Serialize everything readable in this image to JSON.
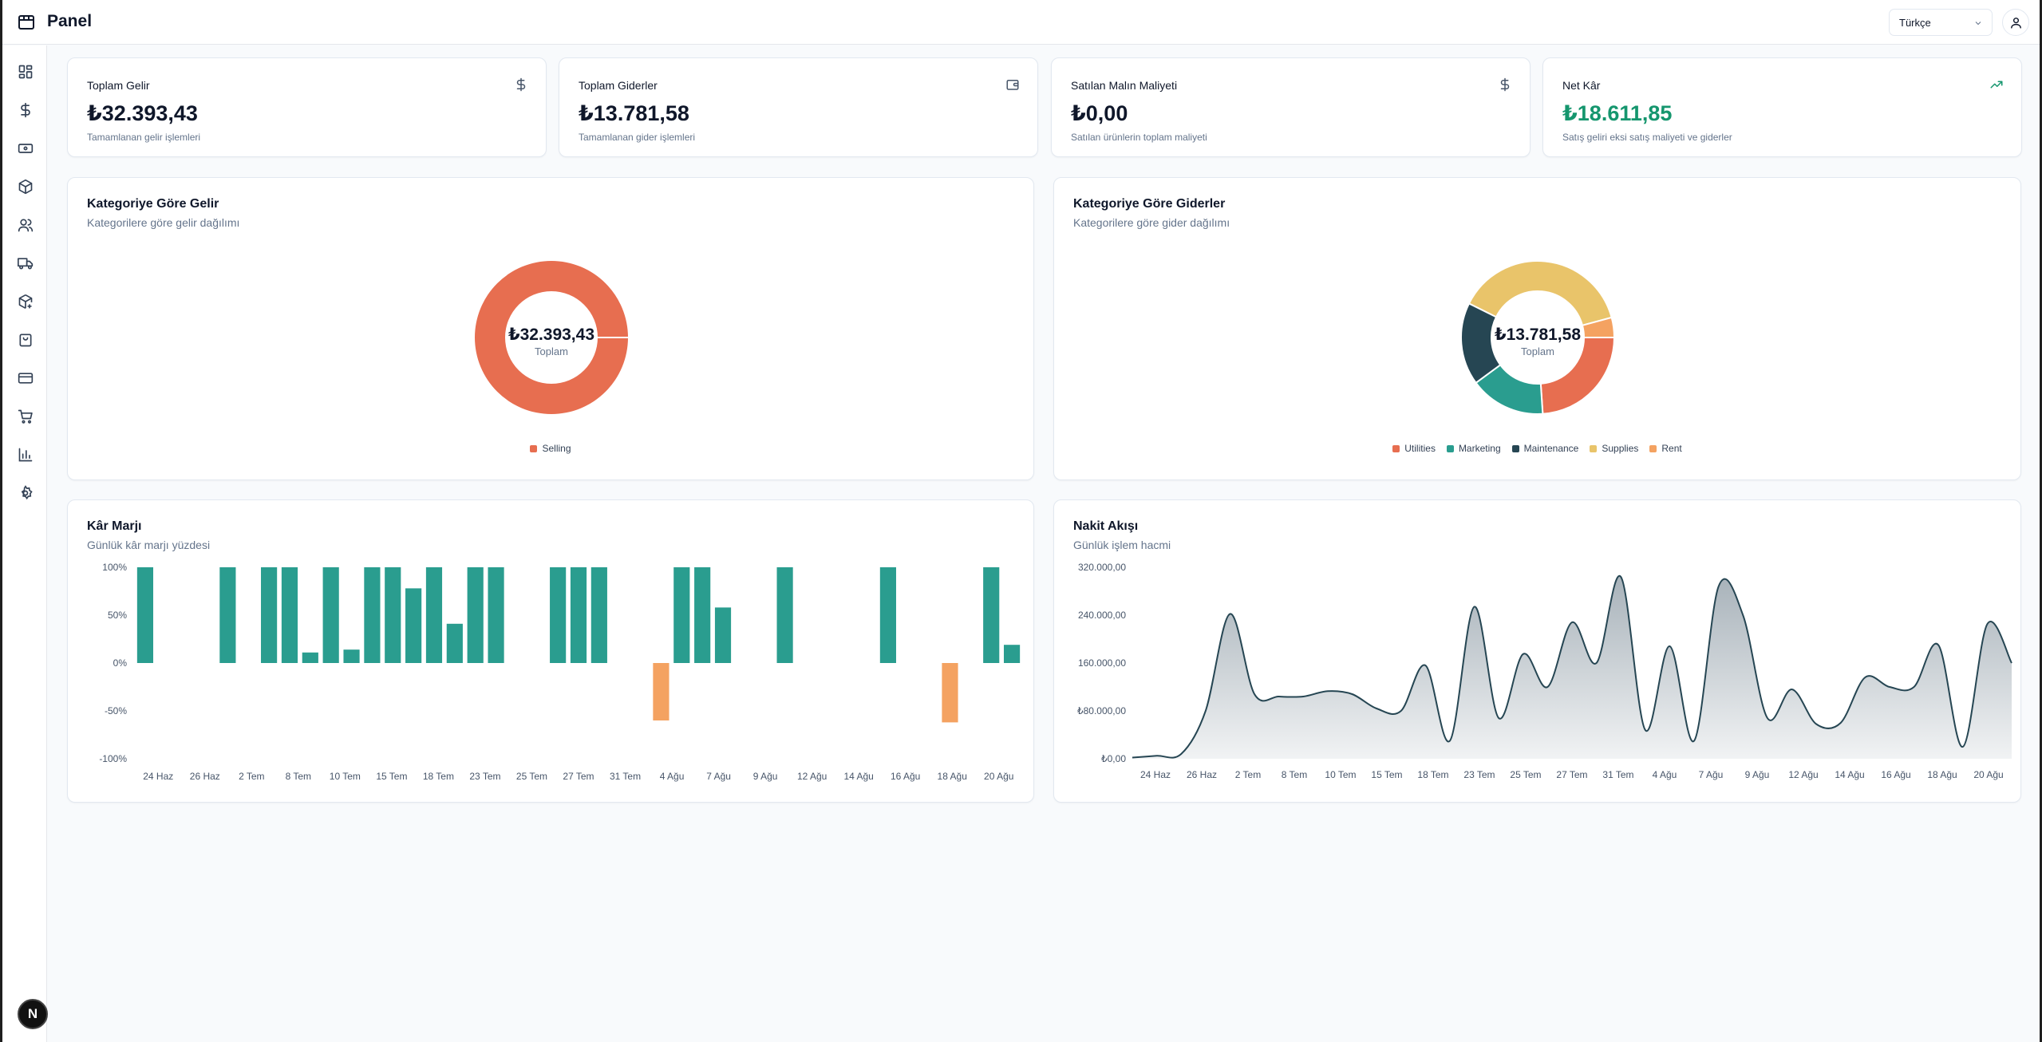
{
  "header": {
    "brand": "Panel",
    "language": "Türkçe"
  },
  "sidebar": {
    "items": [
      {
        "icon": "dashboard-icon",
        "active": true
      },
      {
        "icon": "dollar-icon"
      },
      {
        "icon": "banknote-icon"
      },
      {
        "icon": "package-icon"
      },
      {
        "icon": "users-icon"
      },
      {
        "icon": "truck-icon"
      },
      {
        "icon": "package-plus-icon"
      },
      {
        "icon": "shopping-bag-icon"
      },
      {
        "icon": "credit-card-icon"
      },
      {
        "icon": "shopping-cart-icon"
      },
      {
        "icon": "bar-chart-icon"
      },
      {
        "icon": "settings-icon"
      }
    ],
    "badge": "N"
  },
  "stats": [
    {
      "title": "Toplam Gelir",
      "value": "₺32.393,43",
      "desc": "Tamamlanan gelir işlemleri",
      "icon": "dollar-icon"
    },
    {
      "title": "Toplam Giderler",
      "value": "₺13.781,58",
      "desc": "Tamamlanan gider işlemleri",
      "icon": "wallet-icon"
    },
    {
      "title": "Satılan Malın Maliyeti",
      "value": "₺0,00",
      "desc": "Satılan ürünlerin toplam maliyeti",
      "icon": "dollar-icon"
    },
    {
      "title": "Net Kâr",
      "value": "₺18.611,85",
      "desc": "Satış geliri eksi satış maliyeti ve giderler",
      "icon": "trending-up-icon",
      "accent": "#15966e"
    }
  ],
  "income_panel": {
    "title": "Kategoriye Göre Gelir",
    "subtitle": "Kategorilere göre gelir dağılımı"
  },
  "expense_panel": {
    "title": "Kategoriye Göre Giderler",
    "subtitle": "Kategorilere göre gider dağılımı"
  },
  "margin_panel": {
    "title": "Kâr Marjı",
    "subtitle": "Günlük kâr marjı yüzdesi"
  },
  "cashflow_panel": {
    "title": "Nakit Akışı",
    "subtitle": "Günlük işlem hacmi"
  },
  "chart_data": [
    {
      "type": "pie",
      "variant": "donut",
      "center_value": "₺32.393,43",
      "center_label": "Toplam",
      "slices": [
        {
          "name": "Selling",
          "value": 32393.43,
          "color": "#e76e50"
        }
      ]
    },
    {
      "type": "pie",
      "variant": "donut",
      "center_value": "₺13.781,58",
      "center_label": "Toplam",
      "slices": [
        {
          "name": "Utilities",
          "value": 3300,
          "color": "#e76e50"
        },
        {
          "name": "Marketing",
          "value": 2200,
          "color": "#2a9d8f"
        },
        {
          "name": "Maintenance",
          "value": 2400,
          "color": "#264653"
        },
        {
          "name": "Supplies",
          "value": 5300,
          "color": "#e9c46a"
        },
        {
          "name": "Rent",
          "value": 580,
          "color": "#f4a261"
        }
      ]
    },
    {
      "type": "bar",
      "ylim": [
        -100,
        100
      ],
      "yticks": [
        "100%",
        "50%",
        "0%",
        "-50%",
        "-100%"
      ],
      "ytick_values": [
        100,
        50,
        0,
        -50,
        -100
      ],
      "xtick_labels": [
        "24 Haz",
        "26 Haz",
        "2 Tem",
        "8 Tem",
        "10 Tem",
        "15 Tem",
        "18 Tem",
        "23 Tem",
        "25 Tem",
        "27 Tem",
        "31 Tem",
        "4 Ağu",
        "7 Ağu",
        "9 Ağu",
        "12 Ağu",
        "14 Ağu",
        "16 Ağu",
        "18 Ağu",
        "20 Ağu"
      ],
      "values": [
        100,
        0,
        0,
        0,
        100,
        0,
        100,
        100,
        11,
        100,
        14,
        100,
        100,
        78,
        100,
        41,
        100,
        100,
        0,
        0,
        100,
        100,
        100,
        0,
        0,
        -60,
        100,
        100,
        58,
        0,
        0,
        100,
        0,
        0,
        0,
        0,
        100,
        0,
        0,
        -62,
        0,
        100,
        19
      ],
      "positive_color": "#2a9d8f",
      "negative_color": "#f4a261"
    },
    {
      "type": "area",
      "ylim": [
        0,
        320000
      ],
      "yticks": [
        "320.000,00",
        "240.000,00",
        "160.000,00",
        "₺80.000,00",
        "₺0,00"
      ],
      "ytick_values": [
        320000,
        240000,
        160000,
        80000,
        0
      ],
      "xtick_labels": [
        "24 Haz",
        "26 Haz",
        "2 Tem",
        "8 Tem",
        "10 Tem",
        "15 Tem",
        "18 Tem",
        "23 Tem",
        "25 Tem",
        "27 Tem",
        "31 Tem",
        "4 Ağu",
        "7 Ağu",
        "9 Ağu",
        "12 Ağu",
        "14 Ağu",
        "16 Ağu",
        "18 Ağu",
        "20 Ağu"
      ],
      "values": [
        2000,
        5000,
        8000,
        80000,
        242000,
        108000,
        104000,
        104000,
        113000,
        108000,
        84000,
        80000,
        156000,
        30000,
        254000,
        68000,
        175000,
        120000,
        228000,
        160000,
        304000,
        48000,
        188000,
        30000,
        288000,
        240000,
        68000,
        116000,
        58000,
        60000,
        136000,
        120000,
        120000,
        190000,
        20000,
        225000,
        160000
      ],
      "line_color": "#264653",
      "fill_color": "#a3aeb6"
    }
  ]
}
